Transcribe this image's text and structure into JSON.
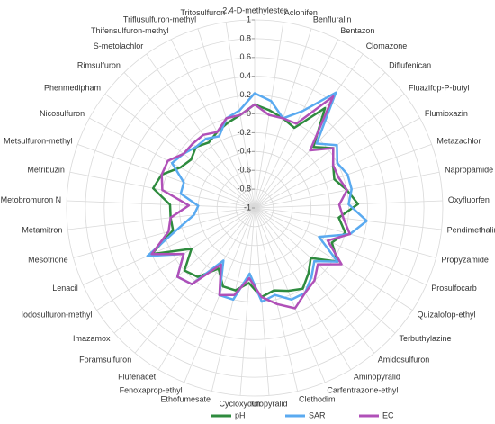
{
  "chart_data": {
    "type": "radar",
    "categories": [
      "2,4-D-methylester",
      "Aclonifen",
      "Benfluralin",
      "Bentazon",
      "Clomazone",
      "Diflufenican",
      "Fluazifop-P-butyl",
      "Flumioxazin",
      "Metazachlor",
      "Napropamide",
      "Oxyfluorfen",
      "Pendimethalin",
      "Propyzamide",
      "Prosulfocarb",
      "Quizalofop-ethyl",
      "Terbuthylazine",
      "Amidosulfuron",
      "Aminopyralid",
      "Carfentrazone-ethyl",
      "Clethodim",
      "Clopyralid",
      "Cycloxydim",
      "Ethofumesate",
      "Fenoxaprop-ethyl",
      "Flufenacet",
      "Foramsulfuron",
      "Imazamox",
      "Iodosulfuron-methyl",
      "Lenacil",
      "Mesotrione",
      "Metamitron",
      "Metobromuron N",
      "Metribuzin",
      "Metsulfuron-methyl",
      "Nicosulfuron",
      "Phenmedipham",
      "Rimsulfuron",
      "S-metolachlor",
      "Thifensulfuron-methyl",
      "Triflusulfuron-methyl",
      "Tritosulfuron"
    ],
    "series": [
      {
        "name": "pH",
        "color": "#2e8b3e",
        "values": [
          0.1,
          0.05,
          0,
          -0.05,
          0.3,
          -0.1,
          0.05,
          -0.05,
          -0.1,
          0,
          0.1,
          -0.1,
          0,
          -0.1,
          0.05,
          -0.2,
          -0.1,
          0,
          -0.05,
          -0.1,
          -0.05,
          -0.2,
          -0.1,
          -0.1,
          -0.25,
          -0.05,
          0,
          -0.2,
          0.2,
          -0.1,
          -0.1,
          -0.1,
          0.1,
          0.05,
          -0.1,
          -0.15,
          -0.1,
          -0.15,
          -0.1,
          -0.05,
          0
        ]
      },
      {
        "name": "SAR",
        "color": "#5aaaf0",
        "values": [
          0.22,
          0.15,
          0,
          0.15,
          0.5,
          -0.05,
          0.1,
          0,
          0.05,
          0.05,
          0,
          0.2,
          0.05,
          -0.25,
          0.05,
          -0.15,
          -0.05,
          0.05,
          0.05,
          -0.05,
          0,
          -0.3,
          0,
          0,
          -0.35,
          0.05,
          0.1,
          -0.1,
          0.25,
          -0.15,
          -0.35,
          -0.4,
          -0.2,
          -0.2,
          0,
          -0.05,
          -0.1,
          -0.1,
          -0.15,
          0,
          0.05
        ]
      },
      {
        "name": "EC",
        "color": "#b050b8",
        "values": [
          0.1,
          0,
          0,
          0,
          0.45,
          -0.15,
          0.05,
          -0.05,
          -0.05,
          0,
          -0.1,
          -0.05,
          0.05,
          -0.15,
          0.1,
          -0.1,
          0,
          0.05,
          0.15,
          0.05,
          -0.05,
          -0.25,
          -0.05,
          0,
          -0.3,
          0.05,
          0.1,
          -0.1,
          0.2,
          -0.05,
          -0.1,
          -0.3,
          0,
          0.05,
          0.05,
          -0.05,
          -0.05,
          -0.05,
          -0.1,
          0,
          0
        ]
      }
    ],
    "ylim": [
      -1,
      1
    ],
    "yticks": [
      -1,
      -0.8,
      -0.6,
      -0.4,
      -0.2,
      0,
      0.2,
      0.4,
      0.6,
      0.8,
      1
    ],
    "grid": true,
    "legend": "bottom"
  }
}
